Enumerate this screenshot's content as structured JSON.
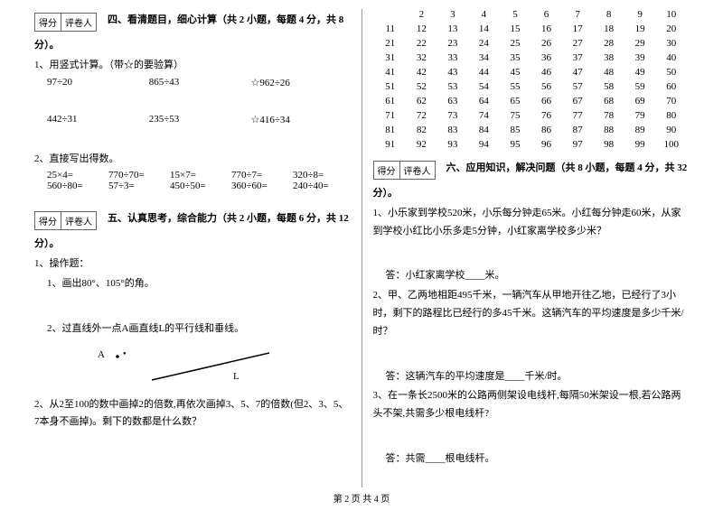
{
  "scorebox": {
    "c1": "得分",
    "c2": "评卷人"
  },
  "sec4": {
    "title_a": "四、看清题目，细心计算（共 2 小题，每题 4 分，共 8",
    "title_b": "分）。",
    "q1": "1、用竖式计算。（带☆的要验算）",
    "r1": [
      "97÷20",
      "865÷43",
      "☆962÷26"
    ],
    "r2": [
      "442÷31",
      "235÷53",
      "☆416÷34"
    ],
    "q2": "2、直接写出得数。",
    "r3": [
      "25×4=",
      "770÷70=",
      "15×7=",
      "770÷7=",
      "320÷8="
    ],
    "r4": [
      "560÷80=",
      "57÷3=",
      "450÷50=",
      "360÷60=",
      "240÷40="
    ]
  },
  "sec5": {
    "title_a": "五、认真思考，综合能力（共 2 小题，每题 6 分，共 12",
    "title_b": "分）。",
    "q1": "1、操作题：",
    "q1a": "1、画出80°、105°的角。",
    "q1b": "2、过直线外一点A画直线L的平行线和垂线。",
    "label_a": "A",
    "label_l": "L",
    "q2": "2、从2至100的数中画掉2的倍数,再依次画掉3、5、7的倍数(但2、3、5、7本身不画掉)。剩下的数都是什么数？"
  },
  "grid": [
    "2",
    "3",
    "4",
    "5",
    "6",
    "7",
    "8",
    "9",
    "10",
    "11",
    "12",
    "13",
    "14",
    "15",
    "16",
    "17",
    "18",
    "19",
    "20",
    "21",
    "22",
    "23",
    "24",
    "25",
    "26",
    "27",
    "28",
    "29",
    "30",
    "31",
    "32",
    "33",
    "34",
    "35",
    "36",
    "37",
    "38",
    "39",
    "40",
    "41",
    "42",
    "43",
    "44",
    "45",
    "46",
    "47",
    "48",
    "49",
    "50",
    "51",
    "52",
    "53",
    "54",
    "55",
    "56",
    "57",
    "58",
    "59",
    "60",
    "61",
    "62",
    "63",
    "64",
    "65",
    "66",
    "67",
    "68",
    "69",
    "70",
    "71",
    "72",
    "73",
    "74",
    "75",
    "76",
    "77",
    "78",
    "79",
    "80",
    "81",
    "82",
    "83",
    "84",
    "85",
    "86",
    "87",
    "88",
    "89",
    "90",
    "91",
    "92",
    "93",
    "94",
    "95",
    "96",
    "97",
    "98",
    "99",
    "100"
  ],
  "sec6": {
    "title_a": "六、应用知识，解决问题（共 8 小题，每题 4 分，共 32",
    "title_b": "分）。",
    "q1": "1、小乐家到学校520米，小乐每分钟走65米。小红每分钟走60米，从家到学校小红比小乐多走5分钟，小红家离学校多少米？",
    "a1": "答：小红家离学校____米。",
    "q2": "2、甲、乙两地相距495千米，一辆汽车从甲地开往乙地，已经行了3小时，剩下的路程比已经行的多45千米。这辆汽车的平均速度是多少千米/时？",
    "a2": "答：这辆汽车的平均速度是____千米/时。",
    "q3": "3、在一条长2500米的公路两侧架设电线杆,每隔50米架设一根,若公路两头不架,共需多少根电线杆?",
    "a3": "答：共需____根电线杆。"
  },
  "footer": "第 2 页 共 4 页"
}
